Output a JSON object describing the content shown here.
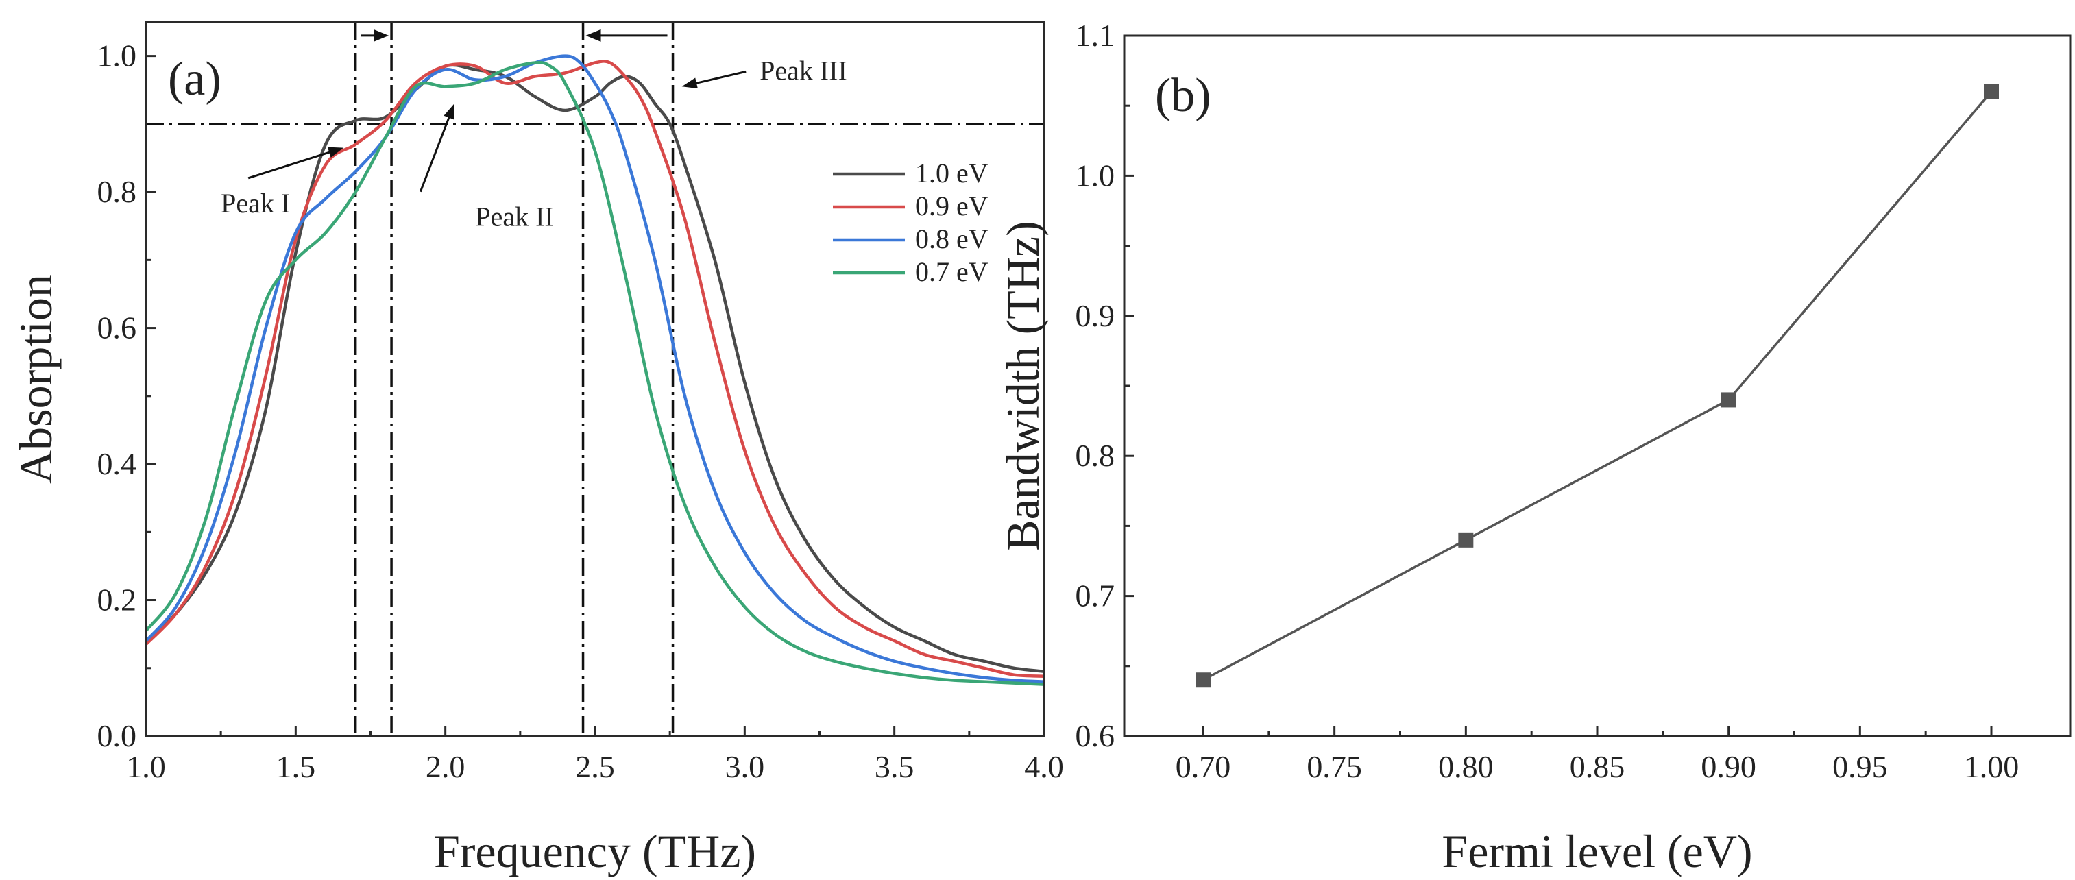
{
  "chart_data": [
    {
      "panel": "(a)",
      "type": "line",
      "xlabel": "Frequency (THz)",
      "ylabel": "Absorption",
      "xlim": [
        1.0,
        4.0
      ],
      "ylim": [
        0.0,
        1.05
      ],
      "xticks": [
        1.0,
        1.5,
        2.0,
        2.5,
        3.0,
        3.5,
        4.0
      ],
      "xtick_labels": [
        "1.0",
        "1.5",
        "2.0",
        "2.5",
        "3.0",
        "3.5",
        "4.0"
      ],
      "yticks": [
        0.0,
        0.2,
        0.4,
        0.6,
        0.8,
        1.0
      ],
      "ytick_labels": [
        "0.0",
        "0.2",
        "0.4",
        "0.6",
        "0.8",
        "1.0"
      ],
      "legend_position": "right",
      "series": [
        {
          "name": "1.0 eV",
          "color": "#4a4a4a",
          "x": [
            1.0,
            1.1,
            1.2,
            1.3,
            1.4,
            1.5,
            1.6,
            1.7,
            1.8,
            1.9,
            2.0,
            2.1,
            2.2,
            2.3,
            2.4,
            2.5,
            2.55,
            2.6,
            2.65,
            2.7,
            2.75,
            2.8,
            2.9,
            3.0,
            3.1,
            3.2,
            3.3,
            3.4,
            3.5,
            3.6,
            3.7,
            3.8,
            3.9,
            4.0
          ],
          "y": [
            0.14,
            0.18,
            0.24,
            0.33,
            0.48,
            0.71,
            0.87,
            0.905,
            0.91,
            0.95,
            0.985,
            0.98,
            0.97,
            0.94,
            0.92,
            0.94,
            0.96,
            0.97,
            0.96,
            0.93,
            0.9,
            0.84,
            0.7,
            0.52,
            0.38,
            0.29,
            0.23,
            0.19,
            0.16,
            0.14,
            0.12,
            0.11,
            0.1,
            0.095
          ]
        },
        {
          "name": "0.9 eV",
          "color": "#d84a4a",
          "x": [
            1.0,
            1.1,
            1.2,
            1.3,
            1.4,
            1.5,
            1.6,
            1.7,
            1.8,
            1.9,
            2.0,
            2.1,
            2.2,
            2.3,
            2.4,
            2.5,
            2.55,
            2.6,
            2.65,
            2.7,
            2.8,
            2.9,
            3.0,
            3.1,
            3.2,
            3.3,
            3.4,
            3.5,
            3.6,
            3.7,
            3.8,
            3.9,
            4.0
          ],
          "y": [
            0.135,
            0.18,
            0.25,
            0.36,
            0.53,
            0.73,
            0.84,
            0.87,
            0.905,
            0.96,
            0.985,
            0.985,
            0.96,
            0.97,
            0.975,
            0.99,
            0.99,
            0.97,
            0.94,
            0.89,
            0.76,
            0.58,
            0.42,
            0.31,
            0.24,
            0.19,
            0.16,
            0.14,
            0.12,
            0.11,
            0.1,
            0.09,
            0.088
          ]
        },
        {
          "name": "0.8 eV",
          "color": "#3b78d8",
          "x": [
            1.0,
            1.1,
            1.2,
            1.3,
            1.4,
            1.5,
            1.6,
            1.7,
            1.8,
            1.9,
            2.0,
            2.1,
            2.2,
            2.3,
            2.4,
            2.45,
            2.5,
            2.55,
            2.6,
            2.7,
            2.8,
            2.9,
            3.0,
            3.1,
            3.2,
            3.3,
            3.4,
            3.5,
            3.6,
            3.7,
            3.8,
            3.9,
            4.0
          ],
          "y": [
            0.14,
            0.19,
            0.28,
            0.42,
            0.6,
            0.74,
            0.79,
            0.83,
            0.88,
            0.95,
            0.98,
            0.965,
            0.97,
            0.99,
            1.0,
            0.99,
            0.96,
            0.92,
            0.86,
            0.7,
            0.5,
            0.36,
            0.27,
            0.21,
            0.17,
            0.145,
            0.125,
            0.11,
            0.1,
            0.092,
            0.086,
            0.082,
            0.08
          ]
        },
        {
          "name": "0.7 eV",
          "color": "#3aa676",
          "x": [
            1.0,
            1.1,
            1.2,
            1.3,
            1.4,
            1.5,
            1.6,
            1.7,
            1.8,
            1.9,
            2.0,
            2.1,
            2.2,
            2.3,
            2.35,
            2.4,
            2.5,
            2.6,
            2.7,
            2.8,
            2.9,
            3.0,
            3.1,
            3.2,
            3.3,
            3.4,
            3.5,
            3.6,
            3.7,
            3.8,
            3.9,
            4.0
          ],
          "y": [
            0.155,
            0.21,
            0.32,
            0.49,
            0.64,
            0.7,
            0.74,
            0.8,
            0.88,
            0.955,
            0.955,
            0.96,
            0.98,
            0.99,
            0.985,
            0.96,
            0.86,
            0.68,
            0.48,
            0.34,
            0.25,
            0.19,
            0.15,
            0.125,
            0.11,
            0.1,
            0.092,
            0.086,
            0.082,
            0.08,
            0.078,
            0.076
          ]
        }
      ],
      "reference_lines": {
        "horizontal_y": 0.9,
        "vertical_x": [
          1.7,
          1.82,
          2.46,
          2.76
        ]
      },
      "shift_arrows": [
        {
          "from_x": 1.7,
          "to_x": 1.82,
          "direction": "right",
          "y": 1.03
        },
        {
          "from_x": 2.76,
          "to_x": 2.46,
          "direction": "left",
          "y": 1.03
        }
      ],
      "annotations": [
        {
          "text": "Peak I",
          "text_x": 1.25,
          "text_y": 0.77,
          "target_x": 1.66,
          "target_y": 0.865
        },
        {
          "text": "Peak II",
          "text_x": 2.1,
          "text_y": 0.75,
          "target_x": 2.03,
          "target_y": 0.93
        },
        {
          "text": "Peak III",
          "text_x": 3.05,
          "text_y": 0.965,
          "target_x": 2.79,
          "target_y": 0.955
        }
      ]
    },
    {
      "panel": "(b)",
      "type": "line",
      "xlabel": "Fermi level (eV)",
      "ylabel": "Bandwidth (THz)",
      "xlim": [
        0.67,
        1.03
      ],
      "ylim": [
        0.6,
        1.1
      ],
      "xticks": [
        0.7,
        0.75,
        0.8,
        0.85,
        0.9,
        0.95,
        1.0
      ],
      "xtick_labels": [
        "0.70",
        "0.75",
        "0.80",
        "0.85",
        "0.90",
        "0.95",
        "1.00"
      ],
      "yticks": [
        0.6,
        0.7,
        0.8,
        0.9,
        1.0,
        1.1
      ],
      "ytick_labels": [
        "0.6",
        "0.7",
        "0.8",
        "0.9",
        "1.0",
        "1.1"
      ],
      "series": [
        {
          "name": "Bandwidth",
          "color": "#555555",
          "marker": "square",
          "x": [
            0.7,
            0.8,
            0.9,
            1.0
          ],
          "y": [
            0.64,
            0.74,
            0.84,
            1.06
          ]
        }
      ]
    }
  ]
}
